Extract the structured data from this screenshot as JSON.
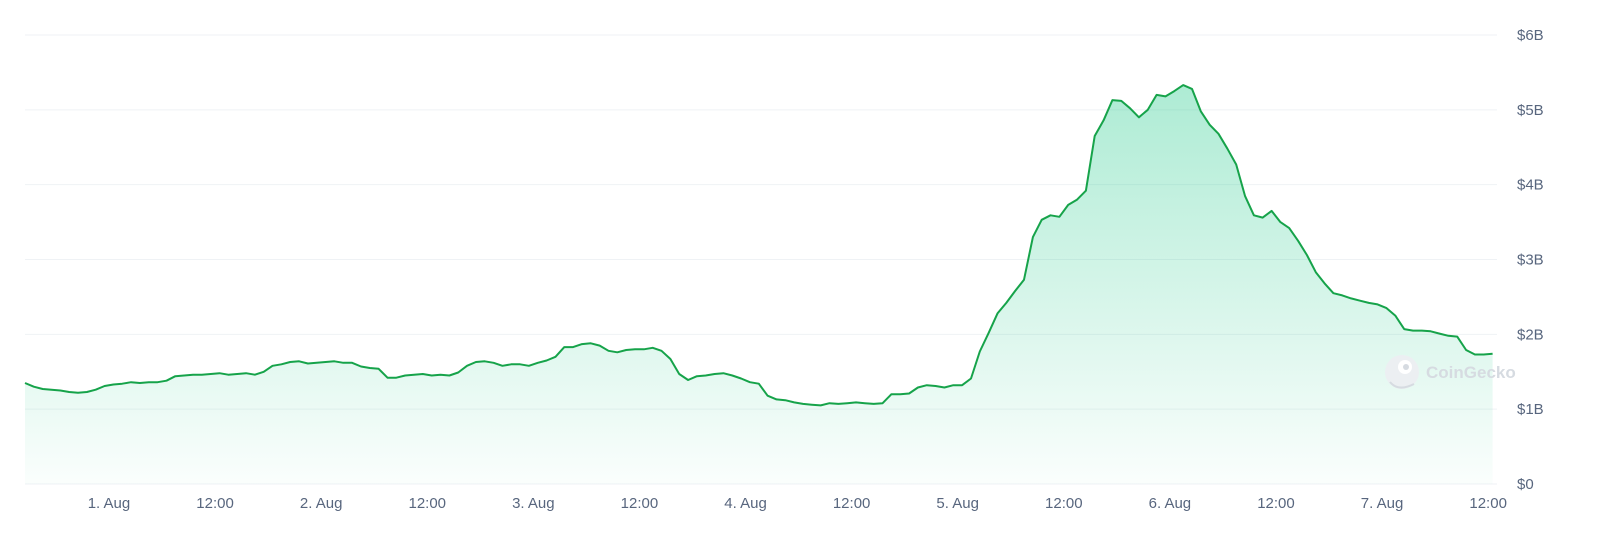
{
  "watermark": {
    "label": "CoinGecko",
    "icon": "gecko-logo-icon"
  },
  "colors": {
    "line": "#16a34a",
    "area_top": "#16c784",
    "grid": "#eff2f5",
    "tick_text": "#58667e"
  },
  "chart_data": {
    "type": "area",
    "title": "",
    "xlabel": "",
    "ylabel": "",
    "y_axis_position": "right",
    "ylim": [
      0,
      6
    ],
    "grid": "horizontal",
    "legend": "none",
    "y_ticks": [
      {
        "value": 0,
        "label": "$0"
      },
      {
        "value": 1,
        "label": "$1B"
      },
      {
        "value": 2,
        "label": "$2B"
      },
      {
        "value": 3,
        "label": "$3B"
      },
      {
        "value": 4,
        "label": "$4B"
      },
      {
        "value": 5,
        "label": "$5B"
      },
      {
        "value": 6,
        "label": "$6B"
      }
    ],
    "x_ticks": [
      {
        "value": 24,
        "label": "1. Aug"
      },
      {
        "value": 36,
        "label": "12:00"
      },
      {
        "value": 48,
        "label": "2. Aug"
      },
      {
        "value": 60,
        "label": "12:00"
      },
      {
        "value": 72,
        "label": "3. Aug"
      },
      {
        "value": 84,
        "label": "12:00"
      },
      {
        "value": 96,
        "label": "4. Aug"
      },
      {
        "value": 108,
        "label": "12:00"
      },
      {
        "value": 120,
        "label": "5. Aug"
      },
      {
        "value": 132,
        "label": "12:00"
      },
      {
        "value": 144,
        "label": "6. Aug"
      },
      {
        "value": 156,
        "label": "12:00"
      },
      {
        "value": 168,
        "label": "7. Aug"
      },
      {
        "value": 180,
        "label": "12:00"
      }
    ],
    "xlim": [
      14.5,
      181
    ],
    "series": [
      {
        "values": [
          [
            14.5,
            1.35
          ],
          [
            15.5,
            1.3
          ],
          [
            16.5,
            1.27
          ],
          [
            17.5,
            1.26
          ],
          [
            18.5,
            1.25
          ],
          [
            19.5,
            1.23
          ],
          [
            20.5,
            1.22
          ],
          [
            21.5,
            1.23
          ],
          [
            22.5,
            1.26
          ],
          [
            23.5,
            1.31
          ],
          [
            24.5,
            1.33
          ],
          [
            25.5,
            1.34
          ],
          [
            26.5,
            1.36
          ],
          [
            27.5,
            1.35
          ],
          [
            28.5,
            1.36
          ],
          [
            29.5,
            1.36
          ],
          [
            30.5,
            1.38
          ],
          [
            31.5,
            1.44
          ],
          [
            32.5,
            1.45
          ],
          [
            33.5,
            1.46
          ],
          [
            34.5,
            1.46
          ],
          [
            35.5,
            1.47
          ],
          [
            36.5,
            1.48
          ],
          [
            37.5,
            1.46
          ],
          [
            38.5,
            1.47
          ],
          [
            39.5,
            1.48
          ],
          [
            40.5,
            1.46
          ],
          [
            41.5,
            1.5
          ],
          [
            42.5,
            1.58
          ],
          [
            43.5,
            1.6
          ],
          [
            44.5,
            1.63
          ],
          [
            45.5,
            1.64
          ],
          [
            46.5,
            1.61
          ],
          [
            47.5,
            1.62
          ],
          [
            48.5,
            1.63
          ],
          [
            49.5,
            1.64
          ],
          [
            50.5,
            1.62
          ],
          [
            51.5,
            1.62
          ],
          [
            52.5,
            1.57
          ],
          [
            53.5,
            1.55
          ],
          [
            54.5,
            1.54
          ],
          [
            55.5,
            1.42
          ],
          [
            56.5,
            1.42
          ],
          [
            57.5,
            1.45
          ],
          [
            58.5,
            1.46
          ],
          [
            59.5,
            1.47
          ],
          [
            60.5,
            1.45
          ],
          [
            61.5,
            1.46
          ],
          [
            62.5,
            1.45
          ],
          [
            63.5,
            1.49
          ],
          [
            64.5,
            1.58
          ],
          [
            65.5,
            1.63
          ],
          [
            66.5,
            1.64
          ],
          [
            67.5,
            1.62
          ],
          [
            68.5,
            1.58
          ],
          [
            69.5,
            1.6
          ],
          [
            70.5,
            1.6
          ],
          [
            71.5,
            1.58
          ],
          [
            72.5,
            1.62
          ],
          [
            73.5,
            1.65
          ],
          [
            74.5,
            1.7
          ],
          [
            75.5,
            1.83
          ],
          [
            76.5,
            1.83
          ],
          [
            77.5,
            1.87
          ],
          [
            78.5,
            1.88
          ],
          [
            79.5,
            1.85
          ],
          [
            80.5,
            1.78
          ],
          [
            81.5,
            1.76
          ],
          [
            82.5,
            1.79
          ],
          [
            83.5,
            1.8
          ],
          [
            84.5,
            1.8
          ],
          [
            85.5,
            1.82
          ],
          [
            86.5,
            1.78
          ],
          [
            87.5,
            1.67
          ],
          [
            88.5,
            1.47
          ],
          [
            89.5,
            1.39
          ],
          [
            90.5,
            1.44
          ],
          [
            91.5,
            1.45
          ],
          [
            92.5,
            1.47
          ],
          [
            93.5,
            1.48
          ],
          [
            94.5,
            1.45
          ],
          [
            95.5,
            1.41
          ],
          [
            96.5,
            1.36
          ],
          [
            97.5,
            1.34
          ],
          [
            98.5,
            1.18
          ],
          [
            99.5,
            1.13
          ],
          [
            100.5,
            1.12
          ],
          [
            101.5,
            1.09
          ],
          [
            102.5,
            1.07
          ],
          [
            103.5,
            1.06
          ],
          [
            104.5,
            1.05
          ],
          [
            105.5,
            1.08
          ],
          [
            106.5,
            1.07
          ],
          [
            107.5,
            1.08
          ],
          [
            108.5,
            1.09
          ],
          [
            109.5,
            1.08
          ],
          [
            110.5,
            1.07
          ],
          [
            111.5,
            1.08
          ],
          [
            112.5,
            1.2
          ],
          [
            113.5,
            1.2
          ],
          [
            114.5,
            1.21
          ],
          [
            115.5,
            1.29
          ],
          [
            116.5,
            1.32
          ],
          [
            117.5,
            1.31
          ],
          [
            118.5,
            1.29
          ],
          [
            119.5,
            1.32
          ],
          [
            120.5,
            1.32
          ],
          [
            121.5,
            1.41
          ],
          [
            122.5,
            1.77
          ],
          [
            123.5,
            2.02
          ],
          [
            124.5,
            2.28
          ],
          [
            125.5,
            2.42
          ],
          [
            126.5,
            2.58
          ],
          [
            127.5,
            2.73
          ],
          [
            128.5,
            3.3
          ],
          [
            129.5,
            3.53
          ],
          [
            130.5,
            3.59
          ],
          [
            131.5,
            3.57
          ],
          [
            132.5,
            3.73
          ],
          [
            133.5,
            3.8
          ],
          [
            134.5,
            3.92
          ],
          [
            135.5,
            4.65
          ],
          [
            136.5,
            4.86
          ],
          [
            137.5,
            5.13
          ],
          [
            138.5,
            5.12
          ],
          [
            139.5,
            5.02
          ],
          [
            140.5,
            4.9
          ],
          [
            141.5,
            5.0
          ],
          [
            142.5,
            5.2
          ],
          [
            143.5,
            5.18
          ],
          [
            144.5,
            5.25
          ],
          [
            145.5,
            5.33
          ],
          [
            146.5,
            5.28
          ],
          [
            147.5,
            4.98
          ],
          [
            148.5,
            4.8
          ],
          [
            149.5,
            4.68
          ],
          [
            150.5,
            4.48
          ],
          [
            151.5,
            4.27
          ],
          [
            152.5,
            3.85
          ],
          [
            153.5,
            3.59
          ],
          [
            154.5,
            3.56
          ],
          [
            155.5,
            3.65
          ],
          [
            156.5,
            3.5
          ],
          [
            157.5,
            3.42
          ],
          [
            158.5,
            3.25
          ],
          [
            159.5,
            3.06
          ],
          [
            160.5,
            2.83
          ],
          [
            161.5,
            2.68
          ],
          [
            162.5,
            2.55
          ],
          [
            163.5,
            2.52
          ],
          [
            164.5,
            2.48
          ],
          [
            165.5,
            2.45
          ],
          [
            166.5,
            2.42
          ],
          [
            167.5,
            2.4
          ],
          [
            168.5,
            2.35
          ],
          [
            169.5,
            2.25
          ],
          [
            170.5,
            2.07
          ],
          [
            171.5,
            2.05
          ],
          [
            172.5,
            2.05
          ],
          [
            173.5,
            2.04
          ],
          [
            174.5,
            2.01
          ],
          [
            175.5,
            1.98
          ],
          [
            176.5,
            1.97
          ],
          [
            177.5,
            1.79
          ],
          [
            178.5,
            1.73
          ],
          [
            179.5,
            1.73
          ],
          [
            180.5,
            1.74
          ]
        ]
      }
    ]
  }
}
